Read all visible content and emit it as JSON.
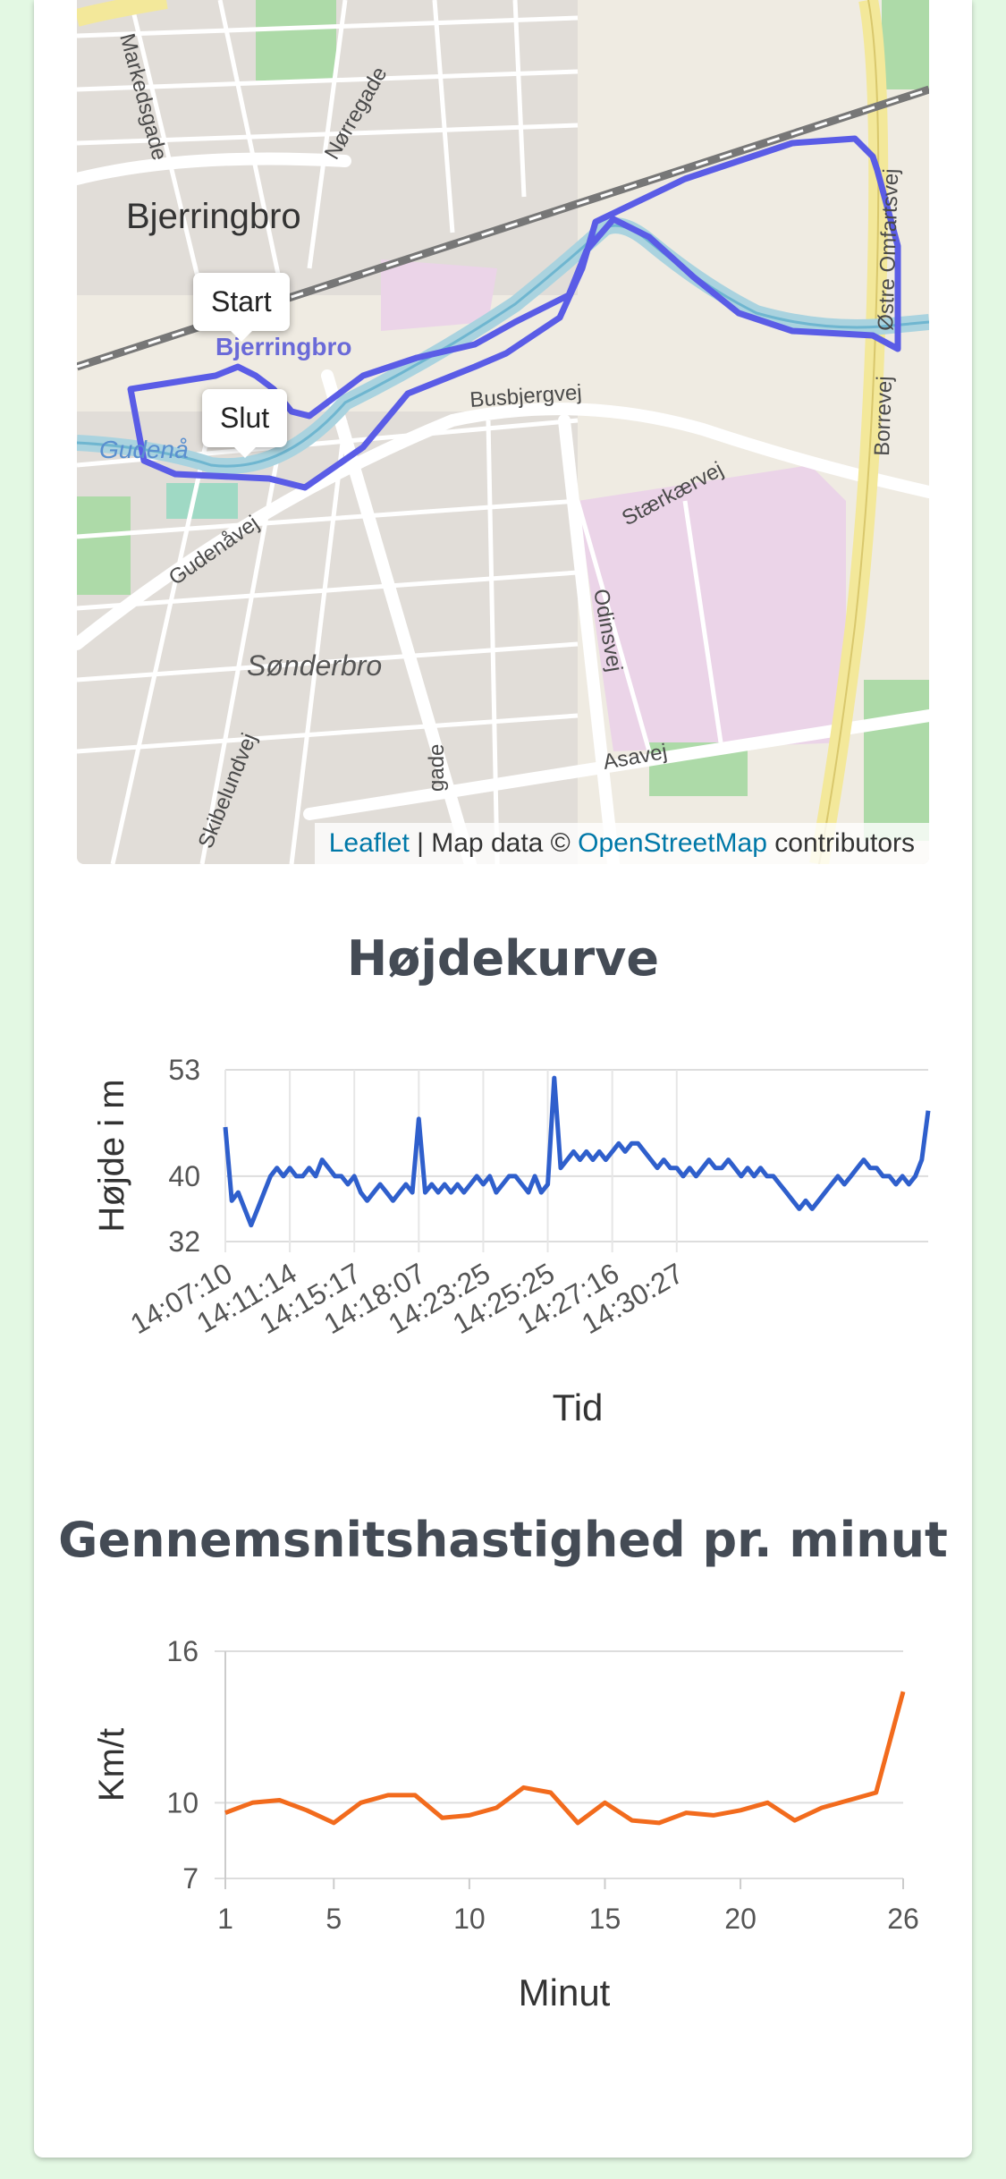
{
  "map": {
    "places": [
      {
        "key": "markedsgade",
        "text": "Markedsgade"
      },
      {
        "key": "norregade",
        "text": "Nørregade"
      },
      {
        "key": "bjerringbro",
        "text": "Bjerringbro"
      },
      {
        "key": "bjerringbro_station",
        "text": "Bjerringbro"
      },
      {
        "key": "gudenaa",
        "text": "Gudenå"
      },
      {
        "key": "busbjergvej",
        "text": "Busbjergvej"
      },
      {
        "key": "gudenavej",
        "text": "Gudenåvej"
      },
      {
        "key": "staerkaervej",
        "text": "Stærkærvej"
      },
      {
        "key": "sonderbro",
        "text": "Sønderbro"
      },
      {
        "key": "odinsvej",
        "text": "Odinsvej"
      },
      {
        "key": "asavej",
        "text": "Asavej"
      },
      {
        "key": "skibelundvej",
        "text": "Skibelundvej"
      },
      {
        "key": "ostre_omfartsvej",
        "text": "Østre Omfartsvej"
      },
      {
        "key": "borrevej",
        "text": "Borrevej"
      },
      {
        "key": "gade",
        "text": "gade"
      }
    ],
    "start_label": "Start",
    "end_label": "Slut",
    "attribution": {
      "leaflet": "Leaflet",
      "mid": " | Map data © ",
      "osm": "OpenStreetMap",
      "end": " contributors"
    },
    "colors": {
      "route": "#5a5ce6",
      "river": "#aad3df",
      "rail": "#777777",
      "residential": "#d9d4d6",
      "industrial": "#ebd3e8",
      "park": "#a8d9a4"
    }
  },
  "chart_data": [
    {
      "type": "line",
      "title": "Højdekurve",
      "xlabel": "Tid",
      "ylabel": "Højde i m",
      "yticks": [
        32,
        40,
        53
      ],
      "ylim": [
        32,
        53
      ],
      "xticks": [
        {
          "index": 0,
          "label": "14:07:10"
        },
        {
          "index": 10,
          "label": "14:11:14"
        },
        {
          "index": 20,
          "label": "14:15:17"
        },
        {
          "index": 30,
          "label": "14:18:07"
        },
        {
          "index": 40,
          "label": "14:23:25"
        },
        {
          "index": 50,
          "label": "14:25:25"
        },
        {
          "index": 60,
          "label": "14:27:16"
        },
        {
          "index": 70,
          "label": "14:30:27"
        }
      ],
      "color": "#2f5fcc",
      "values": [
        46,
        37,
        38,
        36,
        34,
        36,
        38,
        40,
        41,
        40,
        41,
        40,
        40,
        41,
        40,
        42,
        41,
        40,
        40,
        39,
        40,
        38,
        37,
        38,
        39,
        38,
        37,
        38,
        39,
        38,
        47,
        38,
        39,
        38,
        39,
        38,
        39,
        38,
        39,
        40,
        39,
        40,
        38,
        39,
        40,
        40,
        39,
        38,
        40,
        38,
        39,
        52,
        41,
        42,
        43,
        42,
        43,
        42,
        43,
        42,
        43,
        44,
        43,
        44,
        44,
        43,
        42,
        41,
        42,
        41,
        41,
        40,
        41,
        40,
        41,
        42,
        41,
        41,
        42,
        41,
        40,
        41,
        40,
        41,
        40,
        40,
        39,
        38,
        37,
        36,
        37,
        36,
        37,
        38,
        39,
        40,
        39,
        40,
        41,
        42,
        41,
        41,
        40,
        40,
        39,
        40,
        39,
        40,
        42,
        48
      ]
    },
    {
      "type": "line",
      "title": "Gennemsnitshastighed pr. minut",
      "xlabel": "Minut",
      "ylabel": "Km/t",
      "yticks": [
        7,
        10,
        16
      ],
      "ylim": [
        7,
        16
      ],
      "xticks": [
        1,
        5,
        10,
        15,
        20,
        26
      ],
      "xlim": [
        1,
        26
      ],
      "color": "#f26b1d",
      "x": [
        1,
        2,
        3,
        4,
        5,
        6,
        7,
        8,
        9,
        10,
        11,
        12,
        13,
        14,
        15,
        16,
        17,
        18,
        19,
        20,
        21,
        22,
        23,
        24,
        25,
        26
      ],
      "values": [
        9.6,
        10.0,
        10.1,
        9.7,
        9.2,
        10.0,
        10.3,
        10.3,
        9.4,
        9.5,
        9.8,
        10.6,
        10.4,
        9.2,
        10.0,
        9.3,
        9.2,
        9.6,
        9.5,
        9.7,
        10.0,
        9.3,
        9.8,
        10.1,
        10.4,
        14.4
      ]
    }
  ]
}
